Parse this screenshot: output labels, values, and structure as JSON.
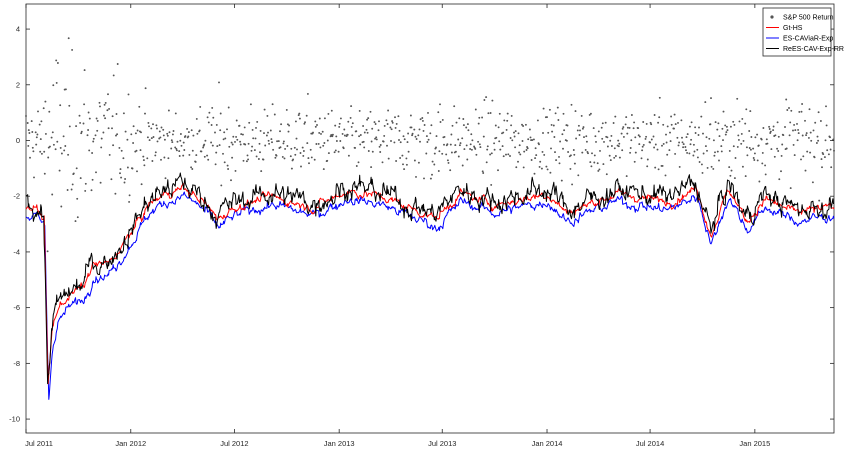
{
  "chart_data": {
    "type": "line",
    "title": "",
    "xlabel": "",
    "ylabel": "",
    "x_range": [
      "2011-07-01",
      "2015-05-20"
    ],
    "x_tick_labels": [
      {
        "date": "2011-07-01",
        "label": "Jul 2011"
      },
      {
        "date": "2012-01-01",
        "label": "Jan 2012"
      },
      {
        "date": "2012-07-01",
        "label": "Jul 2012"
      },
      {
        "date": "2013-01-01",
        "label": "Jan 2013"
      },
      {
        "date": "2013-07-01",
        "label": "Jul 2013"
      },
      {
        "date": "2014-01-01",
        "label": "Jan 2014"
      },
      {
        "date": "2014-07-01",
        "label": "Jul 2014"
      },
      {
        "date": "2015-01-01",
        "label": "Jan 2015"
      }
    ],
    "ylim": [
      -10.5,
      4.9
    ],
    "y_ticks": [
      -10,
      -8,
      -6,
      -4,
      -2,
      0,
      2,
      4
    ],
    "grid": false,
    "legend_position": "top-right",
    "colors": {
      "returns": "#555555",
      "gt_hs": "#ff0000",
      "es_caviar": "#0000ff",
      "rees": "#000000",
      "axis": "#262626"
    },
    "legend": [
      {
        "key": "returns",
        "label": "S&P 500 Return",
        "style": "dot"
      },
      {
        "key": "gt_hs",
        "label": "Gt-HS",
        "style": "line"
      },
      {
        "key": "es_caviar",
        "label": "ES-CAViaR-Exp",
        "style": "line"
      },
      {
        "key": "rees",
        "label": "ReES-CAV-Exp-RR",
        "style": "line"
      }
    ],
    "es_anchors": [
      {
        "date": "2011-07-01",
        "value": -2.5
      },
      {
        "date": "2011-07-20",
        "value": -2.6
      },
      {
        "date": "2011-08-01",
        "value": -2.9
      },
      {
        "date": "2011-08-08",
        "value": -9.0
      },
      {
        "date": "2011-08-15",
        "value": -7.0
      },
      {
        "date": "2011-08-25",
        "value": -6.2
      },
      {
        "date": "2011-09-15",
        "value": -5.7
      },
      {
        "date": "2011-10-10",
        "value": -5.4
      },
      {
        "date": "2011-10-25",
        "value": -4.6
      },
      {
        "date": "2011-11-20",
        "value": -4.6
      },
      {
        "date": "2011-12-10",
        "value": -4.1
      },
      {
        "date": "2012-01-05",
        "value": -3.3
      },
      {
        "date": "2012-02-01",
        "value": -2.4
      },
      {
        "date": "2012-03-01",
        "value": -2.0
      },
      {
        "date": "2012-04-01",
        "value": -1.8
      },
      {
        "date": "2012-05-01",
        "value": -2.2
      },
      {
        "date": "2012-06-01",
        "value": -2.9
      },
      {
        "date": "2012-07-01",
        "value": -2.5
      },
      {
        "date": "2012-09-01",
        "value": -2.1
      },
      {
        "date": "2012-11-15",
        "value": -2.5
      },
      {
        "date": "2013-01-15",
        "value": -1.9
      },
      {
        "date": "2013-03-15",
        "value": -2.1
      },
      {
        "date": "2013-06-20",
        "value": -2.9
      },
      {
        "date": "2013-08-01",
        "value": -2.0
      },
      {
        "date": "2013-10-01",
        "value": -2.4
      },
      {
        "date": "2014-01-01",
        "value": -2.0
      },
      {
        "date": "2014-02-05",
        "value": -2.7
      },
      {
        "date": "2014-05-01",
        "value": -2.0
      },
      {
        "date": "2014-08-01",
        "value": -2.3
      },
      {
        "date": "2014-09-20",
        "value": -1.8
      },
      {
        "date": "2014-10-15",
        "value": -3.5
      },
      {
        "date": "2014-11-15",
        "value": -1.8
      },
      {
        "date": "2014-12-16",
        "value": -3.0
      },
      {
        "date": "2015-01-20",
        "value": -2.2
      },
      {
        "date": "2015-03-10",
        "value": -2.7
      },
      {
        "date": "2015-05-20",
        "value": -2.5
      }
    ]
  }
}
